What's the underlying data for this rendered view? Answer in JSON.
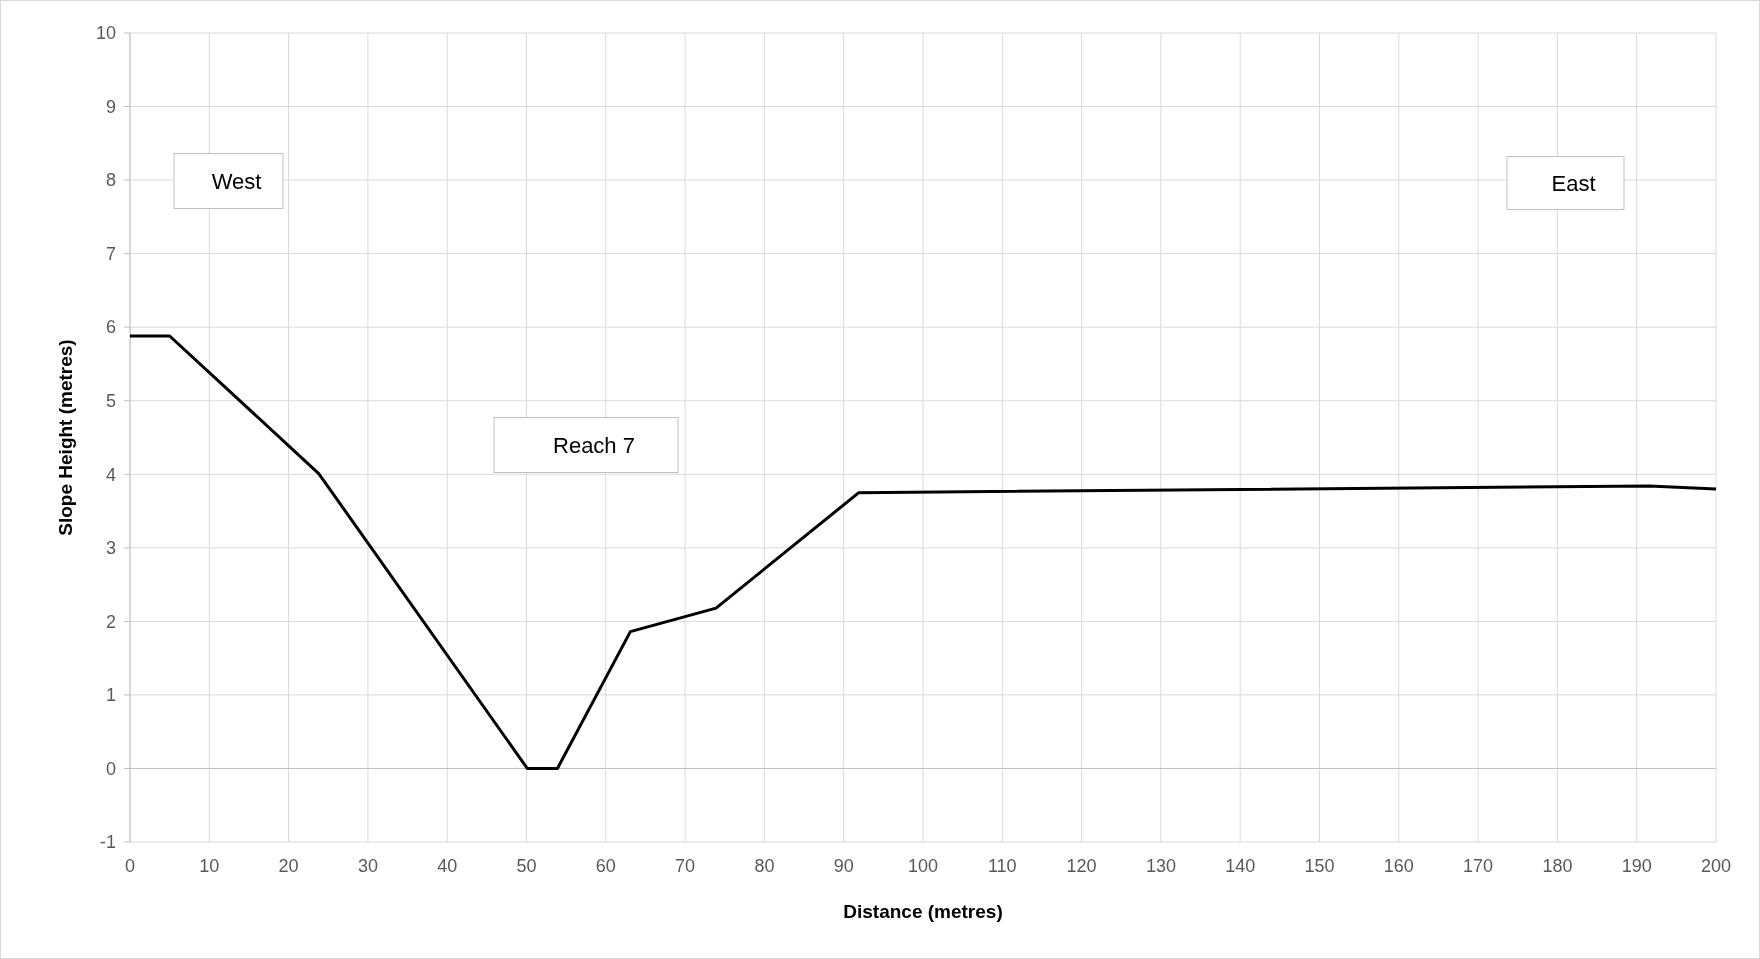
{
  "chart_data": {
    "type": "line",
    "xlabel": "Distance (metres)",
    "ylabel": "Slope Height (metres)",
    "annotations": [
      "West",
      "Reach 7",
      "East"
    ],
    "series": [
      {
        "color": "#000000",
        "x": [
          0,
          5,
          23.8,
          50.1,
          53.9,
          63.1,
          73.9,
          91.9,
          191.6,
          200
        ],
        "values": [
          5.88,
          5.88,
          4.01,
          0,
          0,
          1.86,
          2.18,
          3.75,
          3.84,
          3.8
        ]
      }
    ],
    "xlim": [
      0,
      200
    ],
    "xticks": [
      0,
      10,
      20,
      30,
      40,
      50,
      60,
      70,
      80,
      90,
      100,
      110,
      120,
      130,
      140,
      150,
      160,
      170,
      180,
      190,
      200
    ],
    "ylim": [
      -1,
      10
    ],
    "yticks": [
      -1,
      0,
      1,
      2,
      3,
      4,
      5,
      6,
      7,
      8,
      9,
      10
    ],
    "grid": true,
    "marker": "none",
    "line_style": "solid"
  }
}
